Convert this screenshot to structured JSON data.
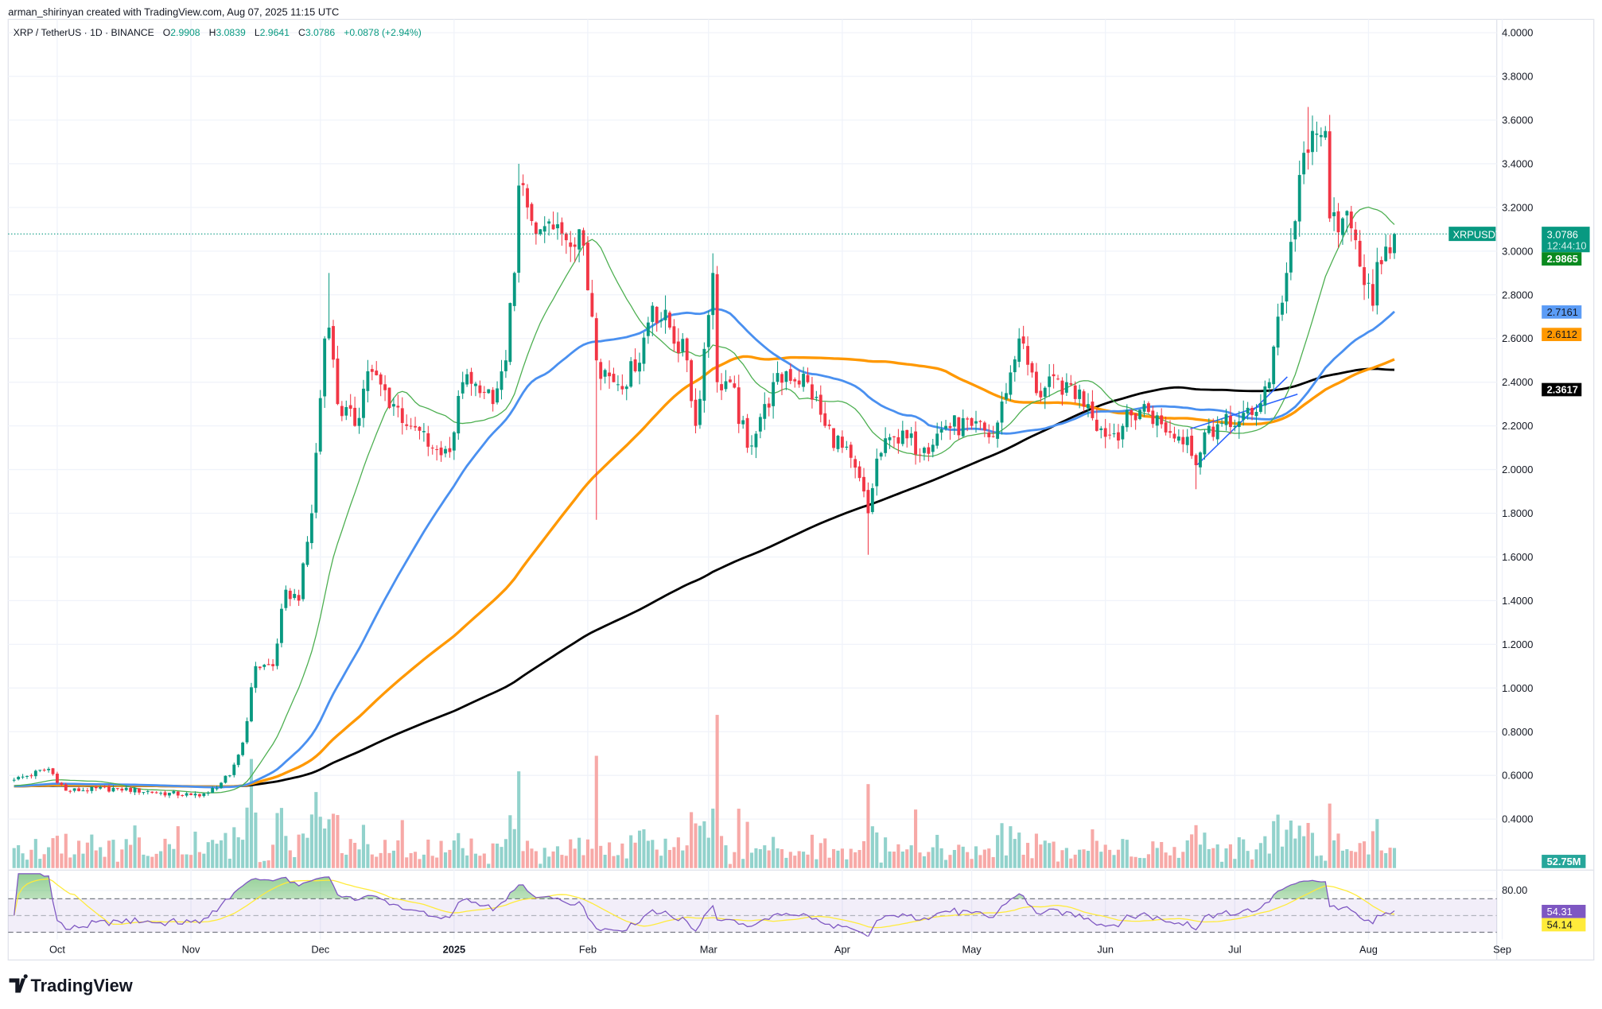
{
  "header": {
    "credit": "arman_shirinyan created with TradingView.com, Aug 07, 2025 11:15 UTC",
    "symbol": "XRP / TetherUS · 1D · BINANCE",
    "o_label": "O",
    "o": "2.9908",
    "h_label": "H",
    "h": "3.0839",
    "l_label": "L",
    "l": "2.9641",
    "c_label": "C",
    "c": "3.0786",
    "change": "+0.0878 (+2.94%)"
  },
  "logo": "TradingView",
  "colors": {
    "up": "#089981",
    "down": "#f23645",
    "vol_up": "#92d2cc",
    "vol_down": "#f7a9a7",
    "ma_fast": "#4caf50",
    "ma_blue": "#4a90f0",
    "ma_orange": "#ff9800",
    "ma_black": "#000000",
    "rsi": "#7e57c2",
    "rsi_ma": "#ffeb3b"
  },
  "badges": {
    "symbol": "XRPUSDT",
    "price": "3.0786",
    "countdown": "12:44:10",
    "ma_green": "2.9865",
    "ma_blue": "2.7161",
    "ma_orange": "2.6112",
    "ma_black": "2.3617",
    "volume": "52.75M",
    "rsi": "54.31",
    "rsi_ma": "54.14",
    "rsi_level": "80.00"
  },
  "chart_data": {
    "type": "candlestick",
    "title": "XRP / TetherUS · 1D · BINANCE",
    "y_ticks": [
      "4.0000",
      "3.8000",
      "3.6000",
      "3.4000",
      "3.2000",
      "3.0000",
      "2.8000",
      "2.6000",
      "2.4000",
      "2.2000",
      "2.0000",
      "1.8000",
      "1.6000",
      "1.4000",
      "1.2000",
      "1.0000",
      "0.8000",
      "0.6000",
      "0.4000"
    ],
    "ylim": [
      0.4,
      4.0
    ],
    "x_ticks": [
      {
        "label": "Oct",
        "date": "2024-10-01"
      },
      {
        "label": "Nov",
        "date": "2024-11-01"
      },
      {
        "label": "Dec",
        "date": "2024-12-01"
      },
      {
        "label": "2025",
        "date": "2025-01-01"
      },
      {
        "label": "Feb",
        "date": "2025-02-01"
      },
      {
        "label": "Mar",
        "date": "2025-03-01"
      },
      {
        "label": "Apr",
        "date": "2025-04-01"
      },
      {
        "label": "May",
        "date": "2025-05-01"
      },
      {
        "label": "Jun",
        "date": "2025-06-01"
      },
      {
        "label": "Jul",
        "date": "2025-07-01"
      },
      {
        "label": "Aug",
        "date": "2025-08-01"
      },
      {
        "label": "Sep",
        "date": "2025-09-01"
      }
    ],
    "grid": true,
    "close_keypoints": [
      [
        "2024-09-21",
        0.58
      ],
      [
        "2024-09-29",
        0.63
      ],
      [
        "2024-10-03",
        0.53
      ],
      [
        "2024-10-15",
        0.54
      ],
      [
        "2024-10-25",
        0.52
      ],
      [
        "2024-11-01",
        0.51
      ],
      [
        "2024-11-05",
        0.52
      ],
      [
        "2024-11-10",
        0.6
      ],
      [
        "2024-11-13",
        0.75
      ],
      [
        "2024-11-16",
        1.1
      ],
      [
        "2024-11-20",
        1.1
      ],
      [
        "2024-11-23",
        1.45
      ],
      [
        "2024-11-26",
        1.4
      ],
      [
        "2024-11-29",
        1.8
      ],
      [
        "2024-12-02",
        2.6
      ],
      [
        "2024-12-03",
        2.65
      ],
      [
        "2024-12-05",
        2.3
      ],
      [
        "2024-12-09",
        2.2
      ],
      [
        "2024-12-12",
        2.45
      ],
      [
        "2024-12-18",
        2.3
      ],
      [
        "2024-12-22",
        2.2
      ],
      [
        "2024-12-27",
        2.1
      ],
      [
        "2024-12-31",
        2.08
      ],
      [
        "2025-01-03",
        2.4
      ],
      [
        "2025-01-07",
        2.35
      ],
      [
        "2025-01-10",
        2.3
      ],
      [
        "2025-01-13",
        2.5
      ],
      [
        "2025-01-15",
        2.9
      ],
      [
        "2025-01-16",
        3.3
      ],
      [
        "2025-01-18",
        3.2
      ],
      [
        "2025-01-21",
        3.1
      ],
      [
        "2025-01-24",
        3.1
      ],
      [
        "2025-01-27",
        3.05
      ],
      [
        "2025-01-30",
        3.1
      ],
      [
        "2025-02-02",
        2.7
      ],
      [
        "2025-02-03",
        2.5
      ],
      [
        "2025-02-07",
        2.4
      ],
      [
        "2025-02-12",
        2.45
      ],
      [
        "2025-02-16",
        2.75
      ],
      [
        "2025-02-20",
        2.65
      ],
      [
        "2025-02-24",
        2.5
      ],
      [
        "2025-02-26",
        2.2
      ],
      [
        "2025-03-02",
        2.9
      ],
      [
        "2025-03-03",
        2.4
      ],
      [
        "2025-03-06",
        2.4
      ],
      [
        "2025-03-10",
        2.1
      ],
      [
        "2025-03-14",
        2.3
      ],
      [
        "2025-03-19",
        2.45
      ],
      [
        "2025-03-24",
        2.4
      ],
      [
        "2025-03-28",
        2.2
      ],
      [
        "2025-04-01",
        2.1
      ],
      [
        "2025-04-06",
        1.9
      ],
      [
        "2025-04-07",
        1.8
      ],
      [
        "2025-04-09",
        2.05
      ],
      [
        "2025-04-13",
        2.15
      ],
      [
        "2025-04-20",
        2.1
      ],
      [
        "2025-04-25",
        2.2
      ],
      [
        "2025-05-01",
        2.2
      ],
      [
        "2025-05-06",
        2.15
      ],
      [
        "2025-05-09",
        2.35
      ],
      [
        "2025-05-12",
        2.6
      ],
      [
        "2025-05-16",
        2.35
      ],
      [
        "2025-05-23",
        2.4
      ],
      [
        "2025-05-28",
        2.3
      ],
      [
        "2025-06-01",
        2.15
      ],
      [
        "2025-06-05",
        2.2
      ],
      [
        "2025-06-10",
        2.3
      ],
      [
        "2025-06-15",
        2.17
      ],
      [
        "2025-06-20",
        2.15
      ],
      [
        "2025-06-22",
        2.02
      ],
      [
        "2025-06-25",
        2.2
      ],
      [
        "2025-07-01",
        2.2
      ],
      [
        "2025-07-05",
        2.25
      ],
      [
        "2025-07-09",
        2.4
      ],
      [
        "2025-07-11",
        2.7
      ],
      [
        "2025-07-13",
        2.9
      ],
      [
        "2025-07-17",
        3.45
      ],
      [
        "2025-07-18",
        3.45
      ],
      [
        "2025-07-22",
        3.55
      ],
      [
        "2025-07-23",
        3.15
      ],
      [
        "2025-07-26",
        3.15
      ],
      [
        "2025-07-29",
        3.05
      ],
      [
        "2025-08-02",
        2.75
      ],
      [
        "2025-08-03",
        2.95
      ],
      [
        "2025-08-06",
        2.99
      ],
      [
        "2025-08-07",
        3.0786
      ]
    ],
    "wick_extremes": [
      {
        "date": "2024-12-03",
        "high": 2.9
      },
      {
        "date": "2025-01-16",
        "high": 3.4
      },
      {
        "date": "2025-02-03",
        "low": 1.77
      },
      {
        "date": "2025-03-02",
        "high": 2.99
      },
      {
        "date": "2025-04-07",
        "low": 1.61
      },
      {
        "date": "2025-07-18",
        "high": 3.66
      },
      {
        "date": "2025-06-22",
        "low": 1.91
      }
    ],
    "last_candle": {
      "date": "2025-08-07",
      "open": 2.9908,
      "high": 3.0839,
      "low": 2.9641,
      "close": 3.0786
    },
    "moving_averages_last": [
      2.9865,
      2.7161,
      2.6112,
      2.3617
    ],
    "rsi": {
      "levels": [
        70,
        50,
        30
      ],
      "tick": "80.00",
      "last": 54.31,
      "ma_last": 54.14
    }
  }
}
